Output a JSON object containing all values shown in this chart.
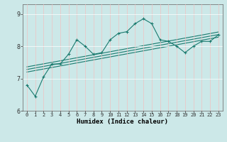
{
  "title": "",
  "xlabel": "Humidex (Indice chaleur)",
  "background_color": "#cce8e8",
  "grid_color": "#ffffff",
  "line_color": "#1a7a6e",
  "x_ticks": [
    0,
    1,
    2,
    3,
    4,
    5,
    6,
    7,
    8,
    9,
    10,
    11,
    12,
    13,
    14,
    15,
    16,
    17,
    18,
    19,
    20,
    21,
    22,
    23
  ],
  "ylim": [
    6.0,
    9.3
  ],
  "yticks": [
    6,
    7,
    8,
    9
  ],
  "series1_x": [
    0,
    1,
    2,
    3,
    4,
    5,
    6,
    7,
    8,
    9,
    10,
    11,
    12,
    13,
    14,
    15,
    16,
    17,
    18,
    19,
    20,
    21,
    22,
    23
  ],
  "series1_y": [
    6.8,
    6.45,
    7.05,
    7.45,
    7.45,
    7.75,
    8.2,
    8.0,
    7.75,
    7.8,
    8.2,
    8.4,
    8.45,
    8.7,
    8.85,
    8.7,
    8.2,
    8.15,
    8.0,
    7.8,
    8.0,
    8.15,
    8.15,
    8.35
  ],
  "series2_x": [
    0,
    23
  ],
  "series2_y": [
    7.2,
    8.28
  ],
  "series3_x": [
    0,
    23
  ],
  "series3_y": [
    7.28,
    8.36
  ],
  "series4_x": [
    0,
    23
  ],
  "series4_y": [
    7.36,
    8.44
  ],
  "marker": "+"
}
